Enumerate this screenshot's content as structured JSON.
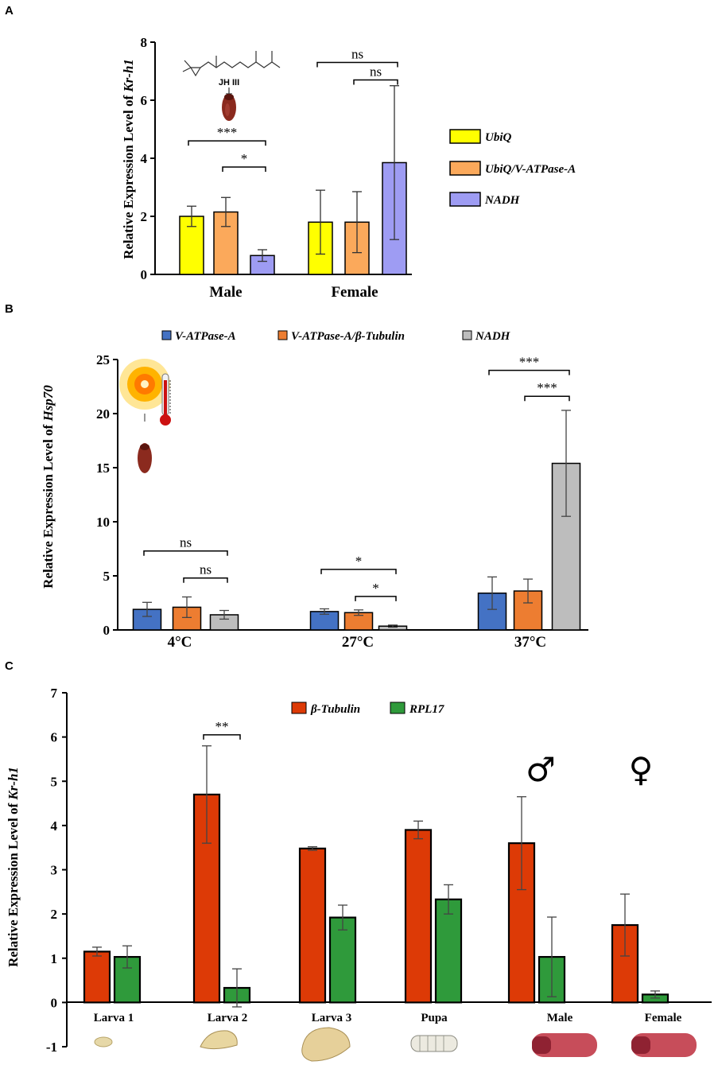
{
  "chart_data": [
    {
      "panel": "A",
      "type": "bar",
      "ylabel_prefix": "Relative Expression Level of ",
      "ylabel_gene": "Kr-h1",
      "ylim": [
        0,
        8
      ],
      "yticks": [
        0,
        2,
        4,
        6,
        8
      ],
      "categories": [
        "Male",
        "Female"
      ],
      "series": [
        {
          "name": "UbiQ",
          "color": "#ffff00",
          "values": [
            2.0,
            1.8
          ],
          "errors": [
            0.35,
            1.1
          ]
        },
        {
          "name": "UbiQ/V-ATPase-A",
          "color": "#fba95b",
          "values": [
            2.15,
            1.8
          ],
          "errors": [
            0.5,
            1.05
          ]
        },
        {
          "name": "NADH",
          "color": "#9e9cf3",
          "values": [
            0.65,
            3.85
          ],
          "errors": [
            0.2,
            2.65
          ]
        }
      ],
      "annotations": [
        {
          "label": "***",
          "cat": 0,
          "from": 0,
          "to": 2,
          "y": 4.6
        },
        {
          "label": "*",
          "cat": 0,
          "from": 1,
          "to": 2,
          "y": 3.7
        },
        {
          "label": "ns",
          "cat": 1,
          "from": 0,
          "to": 2,
          "y": 7.3
        },
        {
          "label": "ns",
          "cat": 1,
          "from": 1,
          "to": 2,
          "y": 6.7
        }
      ],
      "inset_label": "JH III"
    },
    {
      "panel": "B",
      "type": "bar",
      "ylabel_prefix": "Relative Expression Level of ",
      "ylabel_gene": "Hsp70",
      "ylim": [
        0,
        25
      ],
      "yticks": [
        0,
        5,
        10,
        15,
        20,
        25
      ],
      "categories": [
        "4°C",
        "27°C",
        "37°C"
      ],
      "series": [
        {
          "name": "V-ATPase-A",
          "color": "#4472c4",
          "values": [
            1.9,
            1.7,
            3.4
          ],
          "errors": [
            0.65,
            0.25,
            1.5
          ]
        },
        {
          "name": "V-ATPase-A/β-Tubulin",
          "color": "#ed7d31",
          "values": [
            2.1,
            1.6,
            3.6
          ],
          "errors": [
            0.95,
            0.25,
            1.1
          ]
        },
        {
          "name": "NADH",
          "color": "#bdbdbd",
          "values": [
            1.4,
            0.35,
            15.4
          ],
          "errors": [
            0.4,
            0.1,
            4.9
          ]
        }
      ],
      "annotations": [
        {
          "label": "ns",
          "cat": 0,
          "from": 0,
          "to": 2,
          "y": 7.3
        },
        {
          "label": "ns",
          "cat": 0,
          "from": 1,
          "to": 2,
          "y": 4.8
        },
        {
          "label": "*",
          "cat": 1,
          "from": 0,
          "to": 2,
          "y": 5.6
        },
        {
          "label": "*",
          "cat": 1,
          "from": 1,
          "to": 2,
          "y": 3.1
        },
        {
          "label": "***",
          "cat": 2,
          "from": 0,
          "to": 2,
          "y": 24.0
        },
        {
          "label": "***",
          "cat": 2,
          "from": 1,
          "to": 2,
          "y": 21.6
        }
      ]
    },
    {
      "panel": "C",
      "type": "bar",
      "ylabel_prefix": "Relative Expression Level of ",
      "ylabel_gene": "Kr-h1",
      "ylim": [
        -1,
        7
      ],
      "yticks": [
        -1,
        0,
        1,
        2,
        3,
        4,
        5,
        6,
        7
      ],
      "categories": [
        "Larva 1",
        "Larva 2",
        "Larva 3",
        "Pupa",
        "Male",
        "Female"
      ],
      "series": [
        {
          "name": "β-Tubulin",
          "color": "#dd3a06",
          "values": [
            1.15,
            4.7,
            3.48,
            3.9,
            3.6,
            1.75
          ],
          "errors": [
            0.1,
            1.1,
            0.04,
            0.2,
            1.05,
            0.7
          ]
        },
        {
          "name": "RPL17",
          "color": "#2f9a3b",
          "values": [
            1.03,
            0.33,
            1.92,
            2.33,
            1.03,
            0.18
          ],
          "errors": [
            0.25,
            0.43,
            0.28,
            0.33,
            0.9,
            0.08
          ]
        }
      ],
      "annotations": [
        {
          "label": "**",
          "cat": 1,
          "from": 0,
          "to": 1,
          "y": 6.05
        }
      ],
      "sex_symbols": [
        "♂",
        "♀"
      ]
    }
  ]
}
